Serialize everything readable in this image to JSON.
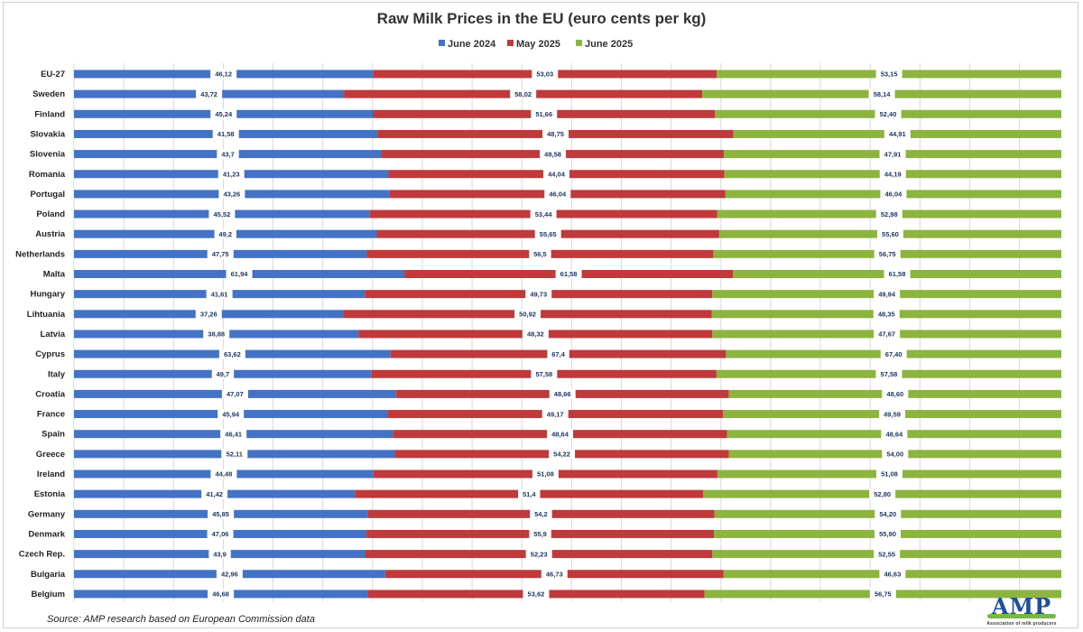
{
  "chart_data": {
    "type": "bar",
    "orientation": "horizontal",
    "stacked": true,
    "title": "Raw Milk Prices in the EU (euro cents per kg)",
    "legend_position": "top",
    "grid": true,
    "categories": [
      "EU-27",
      "Sweden",
      "Finland",
      "Slovakia",
      "Slovenia",
      "Romania",
      "Portugal",
      "Poland",
      "Austria",
      "Netherlands",
      "Malta",
      "Hungary",
      "Lihtuania",
      "Latvia",
      "Cyprus",
      "Italy",
      "Croatia",
      "France",
      "Spain",
      "Greece",
      "Ireland",
      "Estonia",
      "Germany",
      "Denmark",
      "Czech Rep.",
      "Bulgaria",
      "Belgium"
    ],
    "series": [
      {
        "name": "June 2024",
        "color": "#4472c4",
        "values": [
          46.12,
          43.72,
          45.24,
          41.58,
          43.7,
          41.23,
          43.26,
          45.52,
          49.2,
          47.75,
          61.94,
          41.61,
          37.26,
          38.88,
          63.62,
          49.7,
          47.07,
          45.94,
          46.41,
          52.11,
          44.48,
          41.42,
          45.85,
          47.06,
          43.9,
          42.96,
          46.68
        ],
        "labels": [
          "46,12",
          "43,72",
          "45,24",
          "41,58",
          "43,7",
          "41,23",
          "43,26",
          "45,52",
          "49,2",
          "47,75",
          "61,94",
          "41,61",
          "37,26",
          "38,88",
          "63,62",
          "49,7",
          "47,07",
          "45,94",
          "46,41",
          "52,11",
          "44,48",
          "41,42",
          "45,85",
          "47,06",
          "43,9",
          "42,96",
          "46,68"
        ]
      },
      {
        "name": "May 2025",
        "color": "#c0393b",
        "values": [
          53.03,
          58.02,
          51.66,
          48.75,
          48.58,
          44.04,
          46.04,
          53.44,
          55.65,
          56.5,
          61.58,
          49.73,
          50.92,
          48.32,
          67.4,
          57.58,
          48.66,
          49.17,
          48.64,
          54.22,
          51.08,
          51.4,
          54.2,
          55.9,
          52.23,
          46.73,
          53.62
        ],
        "labels": [
          "53,03",
          "58,02",
          "51,66",
          "48,75",
          "48,58",
          "44,04",
          "46,04",
          "53,44",
          "55,65",
          "56,5",
          "61,58",
          "49,73",
          "50,92",
          "48,32",
          "67,4",
          "57,58",
          "48,66",
          "49,17",
          "48,64",
          "54,22",
          "51,08",
          "51,4",
          "54,2",
          "55,9",
          "52,23",
          "46,73",
          "53,62"
        ]
      },
      {
        "name": "June 2025",
        "color": "#8db43e",
        "values": [
          53.15,
          58.14,
          52.4,
          44.91,
          47.91,
          44.19,
          46.04,
          52.98,
          55.6,
          56.75,
          61.58,
          49.94,
          48.35,
          47.67,
          67.4,
          57.58,
          48.6,
          49.59,
          48.64,
          54.0,
          51.08,
          52.8,
          54.2,
          55.9,
          52.55,
          46.63,
          56.75
        ],
        "labels": [
          "53,15",
          "58,14",
          "52,40",
          "44,91",
          "47,91",
          "44,19",
          "46,04",
          "52,98",
          "55,60",
          "56,75",
          "61,58",
          "49,94",
          "48,35",
          "47,67",
          "67,40",
          "57,58",
          "48,60",
          "49,59",
          "48,64",
          "54,00",
          "51,08",
          "52,80",
          "54,20",
          "55,90",
          "52,55",
          "46,63",
          "56,75"
        ]
      }
    ]
  },
  "source": "Source: AMP research based on European Commission data",
  "logo": {
    "text": "AMP",
    "subtitle": "Association of milk producers"
  }
}
